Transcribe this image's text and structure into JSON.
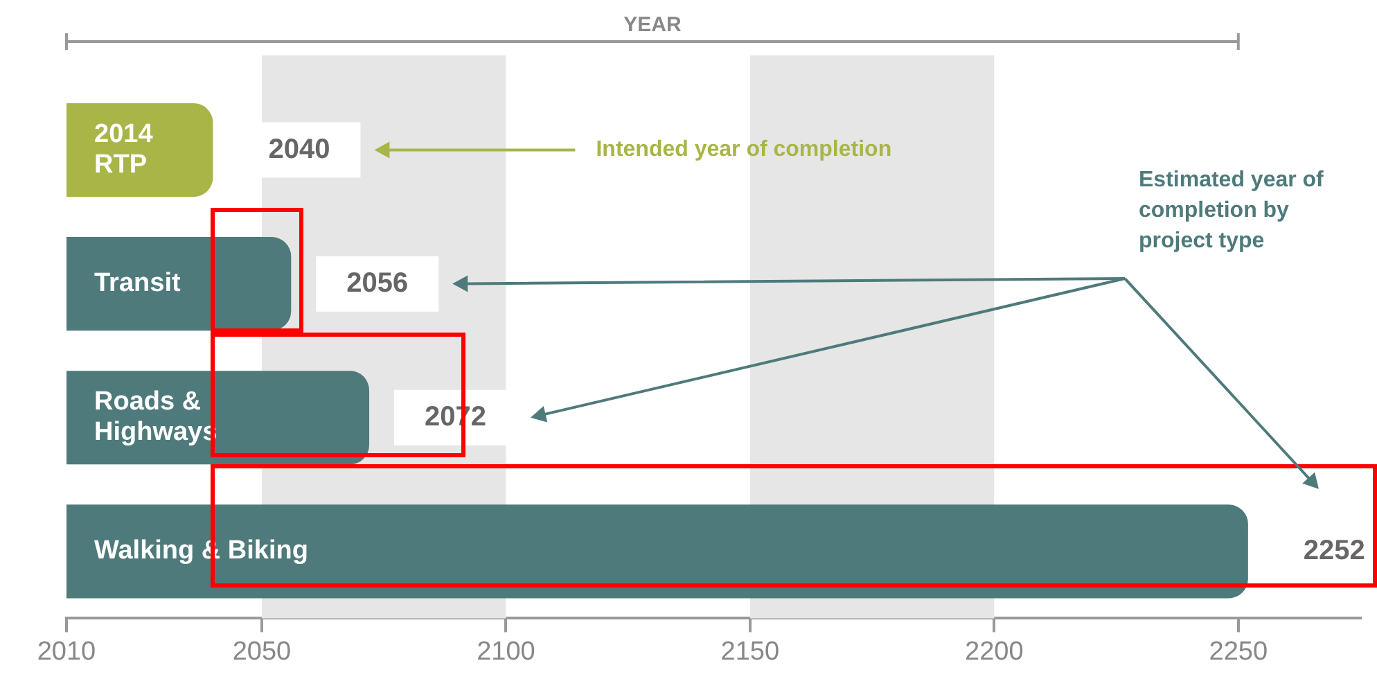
{
  "chart_data": {
    "type": "bar",
    "orientation": "horizontal",
    "xlabel": "YEAR",
    "categories": [
      "2014 RTP",
      "Transit",
      "Roads & Highways",
      "Walking & Biking"
    ],
    "values": [
      2040,
      2056,
      2072,
      2252
    ],
    "colors": [
      "#a9b546",
      "#4e7a7b",
      "#4e7a7b",
      "#4e7a7b"
    ],
    "xlim": [
      2010,
      2275
    ],
    "xticks": [
      2010,
      2050,
      2100,
      2150,
      2200,
      2250
    ],
    "bands": [
      {
        "axis": "x",
        "from": 2050,
        "to": 2100,
        "color": "#e6e6e6"
      },
      {
        "axis": "x",
        "from": 2150,
        "to": 2200,
        "color": "#e6e6e6"
      }
    ],
    "annotations": [
      "Intended year of completion",
      "Estimated year of completion by project type"
    ],
    "data_labels": true,
    "grid": false,
    "legend": false,
    "tick_labels": "x"
  }
}
